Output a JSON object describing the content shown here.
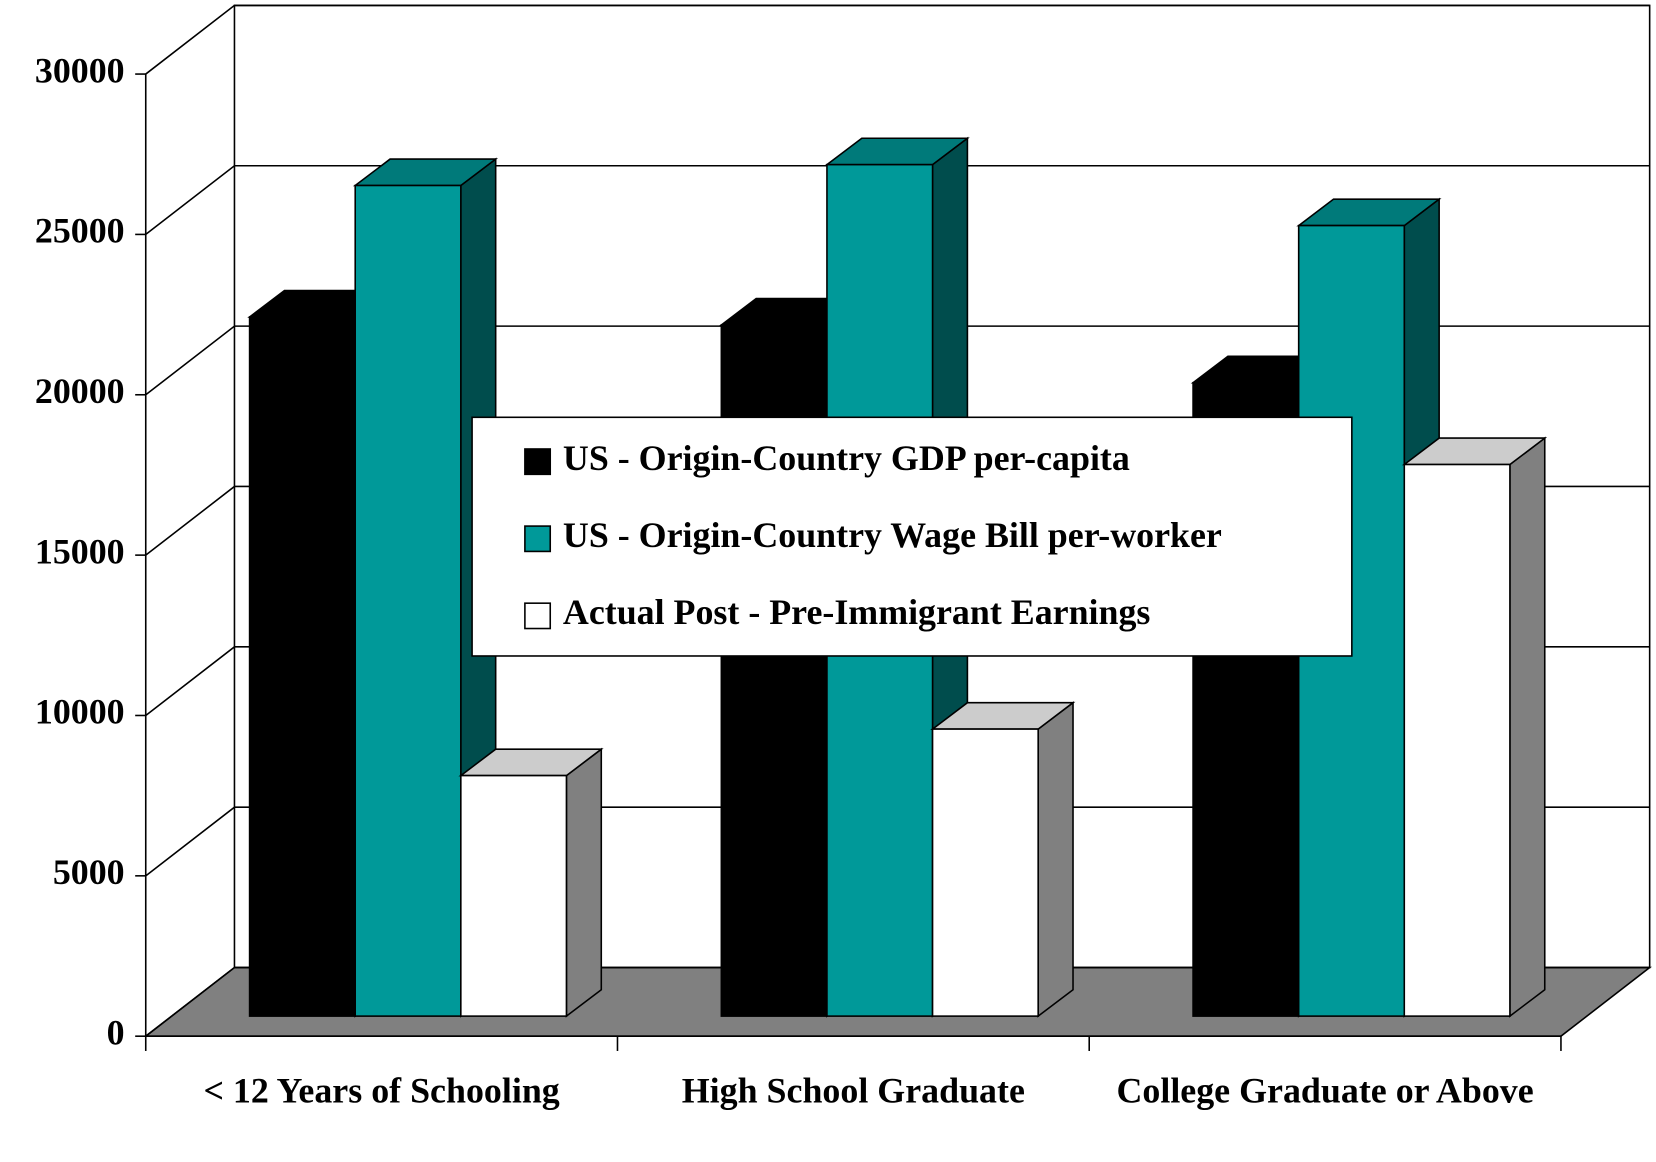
{
  "chart_data": {
    "type": "bar3d",
    "categories": [
      "< 12 Years of Schooling",
      "High School Graduate",
      "College Graduate or Above"
    ],
    "series": [
      {
        "name": "US - Origin-Country GDP per-capita",
        "color": "#000000",
        "values": [
          21800,
          21550,
          19750
        ]
      },
      {
        "name": "US - Origin-Country Wage Bill per-worker",
        "color": "#009999",
        "values": [
          25900,
          26550,
          24650
        ]
      },
      {
        "name": "Actual Post - Pre-Immigrant Earnings",
        "color": "#ffffff",
        "values": [
          7500,
          8950,
          17200
        ]
      }
    ],
    "ylim": [
      0,
      30000
    ],
    "yticks": [
      0,
      5000,
      10000,
      15000,
      20000,
      25000,
      30000
    ],
    "grid": true
  }
}
